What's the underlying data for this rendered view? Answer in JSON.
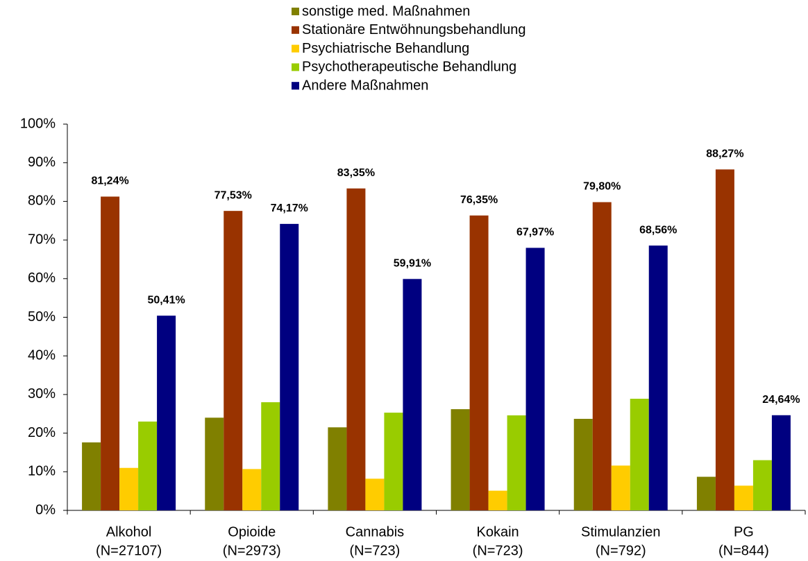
{
  "chart_data": {
    "type": "bar",
    "categories": [
      [
        "Alkohol",
        "(N=27107)"
      ],
      [
        "Opioide",
        "(N=2973)"
      ],
      [
        "Cannabis",
        "(N=723)"
      ],
      [
        "Kokain",
        "(N=723)"
      ],
      [
        "Stimulanzien",
        "(N=792)"
      ],
      [
        "PG",
        "(N=844)"
      ]
    ],
    "series": [
      {
        "name": "sonstige med. Maßnahmen",
        "color": "#808000",
        "values": [
          17.6,
          24,
          21.5,
          26.2,
          23.7,
          8.7
        ]
      },
      {
        "name": "Stationäre Entwöhnungsbehandlung",
        "color": "#993300",
        "values": [
          81.24,
          77.53,
          83.35,
          76.35,
          79.8,
          88.27
        ],
        "value_labels": [
          "81,24%",
          "77,53%",
          "83,35%",
          "76,35%",
          "79,80%",
          "88,27%"
        ]
      },
      {
        "name": "Psychiatrische Behandlung",
        "color": "#ffcc00",
        "values": [
          11,
          10.7,
          8.2,
          5.1,
          11.6,
          6.4
        ]
      },
      {
        "name": "Psychotherapeutische Behandlung",
        "color": "#99cc00",
        "values": [
          23,
          28,
          25.3,
          24.6,
          28.9,
          13
        ]
      },
      {
        "name": "Andere Maßnahmen",
        "color": "#000080",
        "values": [
          50.41,
          74.17,
          59.91,
          67.97,
          68.56,
          24.64
        ],
        "value_labels": [
          "50,41%",
          "74,17%",
          "59,91%",
          "67,97%",
          "68,56%",
          "24,64%"
        ]
      }
    ],
    "ylim": [
      0,
      100
    ],
    "yticks": [
      {
        "value": 0,
        "label": "0%"
      },
      {
        "value": 10,
        "label": "10%"
      },
      {
        "value": 20,
        "label": "20%"
      },
      {
        "value": 30,
        "label": "30%"
      },
      {
        "value": 40,
        "label": "40%"
      },
      {
        "value": 50,
        "label": "50%"
      },
      {
        "value": 60,
        "label": "60%"
      },
      {
        "value": 70,
        "label": "70%"
      },
      {
        "value": 80,
        "label": "80%"
      },
      {
        "value": 90,
        "label": "90%"
      },
      {
        "value": 100,
        "label": "100%"
      }
    ],
    "grid": false,
    "legend": "top"
  }
}
